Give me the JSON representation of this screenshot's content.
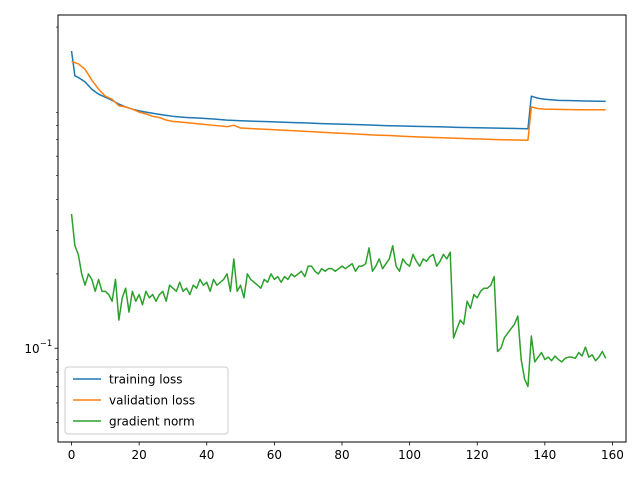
{
  "chart_data": {
    "type": "line",
    "title": "",
    "xlabel": "",
    "ylabel": "",
    "xlim": [
      -4,
      164
    ],
    "ylim_log10": [
      -1.38,
      0.35
    ],
    "yscale": "log",
    "grid": false,
    "legend_position": "lower-left",
    "x_ticks": [
      0,
      20,
      40,
      60,
      80,
      100,
      120,
      140,
      160
    ],
    "y_tick_label": "10",
    "y_tick_exponent": "−1",
    "y_tick_value": 0.1,
    "series": [
      {
        "name": "training loss",
        "color": "#1f77b4",
        "points": [
          [
            0,
            1.6
          ],
          [
            1,
            1.27
          ],
          [
            2,
            1.25
          ],
          [
            4,
            1.2
          ],
          [
            6,
            1.12
          ],
          [
            8,
            1.07
          ],
          [
            10,
            1.04
          ],
          [
            12,
            1.01
          ],
          [
            14,
            0.975
          ],
          [
            16,
            0.95
          ],
          [
            18,
            0.93
          ],
          [
            20,
            0.915
          ],
          [
            22,
            0.905
          ],
          [
            24,
            0.895
          ],
          [
            26,
            0.886
          ],
          [
            28,
            0.878
          ],
          [
            30,
            0.87
          ],
          [
            34,
            0.86
          ],
          [
            38,
            0.855
          ],
          [
            42,
            0.848
          ],
          [
            46,
            0.84
          ],
          [
            50,
            0.835
          ],
          [
            54,
            0.831
          ],
          [
            58,
            0.828
          ],
          [
            62,
            0.824
          ],
          [
            66,
            0.82
          ],
          [
            70,
            0.817
          ],
          [
            74,
            0.813
          ],
          [
            78,
            0.81
          ],
          [
            82,
            0.807
          ],
          [
            86,
            0.804
          ],
          [
            90,
            0.8
          ],
          [
            94,
            0.797
          ],
          [
            98,
            0.795
          ],
          [
            102,
            0.792
          ],
          [
            106,
            0.79
          ],
          [
            110,
            0.788
          ],
          [
            114,
            0.785
          ],
          [
            118,
            0.783
          ],
          [
            122,
            0.781
          ],
          [
            126,
            0.779
          ],
          [
            130,
            0.777
          ],
          [
            133,
            0.776
          ],
          [
            135,
            0.775
          ],
          [
            136,
            1.05
          ],
          [
            138,
            1.03
          ],
          [
            140,
            1.02
          ],
          [
            144,
            1.01
          ],
          [
            148,
            1.007
          ],
          [
            152,
            1.004
          ],
          [
            156,
            1.001
          ],
          [
            158,
            1.0
          ]
        ]
      },
      {
        "name": "validation loss",
        "color": "#ff7f0e",
        "points": [
          [
            0,
            1.45
          ],
          [
            2,
            1.42
          ],
          [
            4,
            1.35
          ],
          [
            6,
            1.22
          ],
          [
            8,
            1.12
          ],
          [
            10,
            1.05
          ],
          [
            12,
            1.02
          ],
          [
            14,
            0.96
          ],
          [
            16,
            0.95
          ],
          [
            18,
            0.93
          ],
          [
            20,
            0.905
          ],
          [
            22,
            0.89
          ],
          [
            24,
            0.87
          ],
          [
            26,
            0.86
          ],
          [
            28,
            0.84
          ],
          [
            30,
            0.83
          ],
          [
            34,
            0.82
          ],
          [
            38,
            0.81
          ],
          [
            42,
            0.8
          ],
          [
            46,
            0.79
          ],
          [
            48,
            0.8
          ],
          [
            50,
            0.78
          ],
          [
            54,
            0.775
          ],
          [
            58,
            0.77
          ],
          [
            62,
            0.765
          ],
          [
            66,
            0.76
          ],
          [
            70,
            0.755
          ],
          [
            74,
            0.75
          ],
          [
            78,
            0.745
          ],
          [
            82,
            0.74
          ],
          [
            86,
            0.735
          ],
          [
            90,
            0.73
          ],
          [
            94,
            0.727
          ],
          [
            98,
            0.722
          ],
          [
            102,
            0.718
          ],
          [
            106,
            0.715
          ],
          [
            110,
            0.712
          ],
          [
            114,
            0.709
          ],
          [
            118,
            0.706
          ],
          [
            122,
            0.703
          ],
          [
            126,
            0.7
          ],
          [
            130,
            0.698
          ],
          [
            133,
            0.697
          ],
          [
            135,
            0.696
          ],
          [
            136,
            0.95
          ],
          [
            138,
            0.935
          ],
          [
            140,
            0.93
          ],
          [
            144,
            0.928
          ],
          [
            148,
            0.926
          ],
          [
            152,
            0.925
          ],
          [
            156,
            0.925
          ],
          [
            158,
            0.925
          ]
        ]
      },
      {
        "name": "gradient norm",
        "color": "#2ca02c",
        "points": [
          [
            0,
            0.35
          ],
          [
            1,
            0.26
          ],
          [
            2,
            0.24
          ],
          [
            3,
            0.2
          ],
          [
            4,
            0.18
          ],
          [
            5,
            0.2
          ],
          [
            6,
            0.19
          ],
          [
            7,
            0.17
          ],
          [
            8,
            0.19
          ],
          [
            9,
            0.17
          ],
          [
            10,
            0.17
          ],
          [
            11,
            0.165
          ],
          [
            12,
            0.155
          ],
          [
            13,
            0.19
          ],
          [
            14,
            0.13
          ],
          [
            15,
            0.16
          ],
          [
            16,
            0.175
          ],
          [
            17,
            0.14
          ],
          [
            18,
            0.17
          ],
          [
            19,
            0.155
          ],
          [
            20,
            0.165
          ],
          [
            21,
            0.15
          ],
          [
            22,
            0.17
          ],
          [
            23,
            0.16
          ],
          [
            24,
            0.165
          ],
          [
            25,
            0.155
          ],
          [
            26,
            0.165
          ],
          [
            27,
            0.17
          ],
          [
            28,
            0.155
          ],
          [
            29,
            0.18
          ],
          [
            30,
            0.175
          ],
          [
            31,
            0.17
          ],
          [
            32,
            0.185
          ],
          [
            33,
            0.17
          ],
          [
            34,
            0.175
          ],
          [
            35,
            0.165
          ],
          [
            36,
            0.18
          ],
          [
            37,
            0.175
          ],
          [
            38,
            0.19
          ],
          [
            39,
            0.18
          ],
          [
            40,
            0.185
          ],
          [
            41,
            0.17
          ],
          [
            42,
            0.19
          ],
          [
            43,
            0.18
          ],
          [
            44,
            0.185
          ],
          [
            45,
            0.19
          ],
          [
            46,
            0.2
          ],
          [
            47,
            0.17
          ],
          [
            48,
            0.23
          ],
          [
            49,
            0.17
          ],
          [
            50,
            0.18
          ],
          [
            51,
            0.16
          ],
          [
            52,
            0.2
          ],
          [
            53,
            0.19
          ],
          [
            54,
            0.185
          ],
          [
            55,
            0.18
          ],
          [
            56,
            0.175
          ],
          [
            57,
            0.19
          ],
          [
            58,
            0.185
          ],
          [
            59,
            0.2
          ],
          [
            60,
            0.19
          ],
          [
            61,
            0.195
          ],
          [
            62,
            0.185
          ],
          [
            63,
            0.195
          ],
          [
            64,
            0.19
          ],
          [
            65,
            0.2
          ],
          [
            66,
            0.195
          ],
          [
            67,
            0.2
          ],
          [
            68,
            0.205
          ],
          [
            69,
            0.195
          ],
          [
            70,
            0.215
          ],
          [
            71,
            0.215
          ],
          [
            72,
            0.205
          ],
          [
            73,
            0.2
          ],
          [
            74,
            0.21
          ],
          [
            75,
            0.205
          ],
          [
            76,
            0.21
          ],
          [
            77,
            0.21
          ],
          [
            78,
            0.205
          ],
          [
            79,
            0.21
          ],
          [
            80,
            0.215
          ],
          [
            81,
            0.21
          ],
          [
            82,
            0.215
          ],
          [
            83,
            0.22
          ],
          [
            84,
            0.205
          ],
          [
            85,
            0.215
          ],
          [
            86,
            0.215
          ],
          [
            87,
            0.22
          ],
          [
            88,
            0.255
          ],
          [
            89,
            0.205
          ],
          [
            90,
            0.215
          ],
          [
            91,
            0.23
          ],
          [
            92,
            0.21
          ],
          [
            93,
            0.22
          ],
          [
            94,
            0.23
          ],
          [
            95,
            0.26
          ],
          [
            96,
            0.215
          ],
          [
            97,
            0.205
          ],
          [
            98,
            0.23
          ],
          [
            99,
            0.22
          ],
          [
            100,
            0.215
          ],
          [
            101,
            0.24
          ],
          [
            102,
            0.225
          ],
          [
            103,
            0.215
          ],
          [
            104,
            0.23
          ],
          [
            105,
            0.225
          ],
          [
            106,
            0.235
          ],
          [
            107,
            0.24
          ],
          [
            108,
            0.215
          ],
          [
            109,
            0.225
          ],
          [
            110,
            0.24
          ],
          [
            111,
            0.23
          ],
          [
            112,
            0.245
          ],
          [
            113,
            0.11
          ],
          [
            114,
            0.12
          ],
          [
            115,
            0.13
          ],
          [
            116,
            0.125
          ],
          [
            117,
            0.155
          ],
          [
            118,
            0.145
          ],
          [
            119,
            0.165
          ],
          [
            120,
            0.16
          ],
          [
            121,
            0.17
          ],
          [
            122,
            0.175
          ],
          [
            123,
            0.175
          ],
          [
            124,
            0.18
          ],
          [
            125,
            0.195
          ],
          [
            126,
            0.097
          ],
          [
            127,
            0.1
          ],
          [
            128,
            0.11
          ],
          [
            129,
            0.115
          ],
          [
            130,
            0.12
          ],
          [
            131,
            0.125
          ],
          [
            132,
            0.135
          ],
          [
            133,
            0.09
          ],
          [
            134,
            0.075
          ],
          [
            135,
            0.07
          ],
          [
            136,
            0.112
          ],
          [
            137,
            0.088
          ],
          [
            138,
            0.092
          ],
          [
            139,
            0.096
          ],
          [
            140,
            0.09
          ],
          [
            141,
            0.092
          ],
          [
            142,
            0.089
          ],
          [
            143,
            0.093
          ],
          [
            144,
            0.09
          ],
          [
            145,
            0.088
          ],
          [
            146,
            0.091
          ],
          [
            147,
            0.092
          ],
          [
            148,
            0.092
          ],
          [
            149,
            0.091
          ],
          [
            150,
            0.096
          ],
          [
            151,
            0.093
          ],
          [
            152,
            0.101
          ],
          [
            153,
            0.092
          ],
          [
            154,
            0.094
          ],
          [
            155,
            0.089
          ],
          [
            156,
            0.092
          ],
          [
            157,
            0.097
          ],
          [
            158,
            0.091
          ]
        ]
      }
    ]
  }
}
